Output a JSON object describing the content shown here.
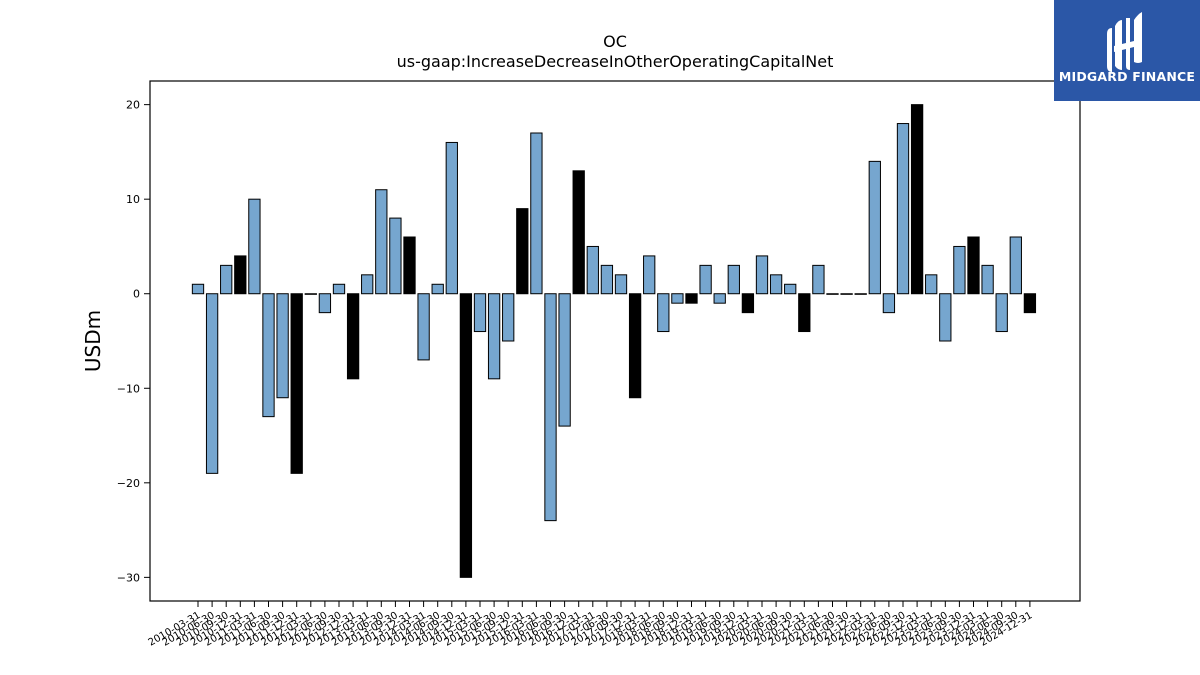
{
  "chart_data": {
    "type": "bar",
    "title": "OC",
    "subtitle": "us-gaap:IncreaseDecreaseInOtherOperatingCapitalNet",
    "ylabel": "USDm",
    "xlabel": "",
    "ylim": [
      -32.5,
      22.5
    ],
    "yticks": [
      -30,
      -20,
      -10,
      0,
      10,
      20
    ],
    "grid": false,
    "colors": {
      "quarter": "#76a6cf",
      "q4": "#000000",
      "edge": "#000000"
    },
    "categories": [
      "2010-03-31",
      "2010-06-30",
      "2010-09-30",
      "2010-12-31",
      "2011-03-31",
      "2011-06-30",
      "2011-09-30",
      "2011-12-31",
      "2012-03-31",
      "2012-06-30",
      "2012-09-30",
      "2012-12-31",
      "2013-03-31",
      "2013-06-30",
      "2013-09-30",
      "2013-12-31",
      "2014-03-31",
      "2014-06-30",
      "2014-09-30",
      "2014-12-31",
      "2015-03-31",
      "2015-06-30",
      "2015-09-30",
      "2015-12-31",
      "2016-03-31",
      "2016-06-30",
      "2016-09-30",
      "2016-12-31",
      "2017-03-31",
      "2017-06-30",
      "2017-09-30",
      "2017-12-31",
      "2018-03-31",
      "2018-06-30",
      "2018-09-30",
      "2018-12-31",
      "2019-03-31",
      "2019-06-30",
      "2019-09-30",
      "2019-12-31",
      "2020-03-31",
      "2020-06-30",
      "2020-09-30",
      "2020-12-31",
      "2021-03-31",
      "2021-06-30",
      "2021-09-30",
      "2021-12-31",
      "2022-03-31",
      "2022-06-30",
      "2022-09-30",
      "2022-12-31",
      "2023-03-31",
      "2023-06-30",
      "2023-09-30",
      "2023-12-31",
      "2024-03-31",
      "2024-06-30",
      "2024-09-30",
      "2024-12-31"
    ],
    "values": [
      1,
      -19,
      3,
      4,
      10,
      -13,
      -11,
      -19,
      0,
      -2,
      1,
      -9,
      2,
      11,
      8,
      6,
      -7,
      1,
      16,
      -30,
      -4,
      -9,
      -5,
      9,
      17,
      -24,
      -14,
      13,
      5,
      3,
      2,
      -11,
      4,
      -4,
      -1,
      -1,
      3,
      -1,
      3,
      -2,
      4,
      2,
      1,
      -4,
      3,
      0,
      0,
      0,
      14,
      -2,
      18,
      20,
      2,
      -5,
      5,
      6,
      3,
      -4,
      6,
      -2
    ]
  },
  "logo": {
    "text": "MIDGARD FINANCE"
  }
}
